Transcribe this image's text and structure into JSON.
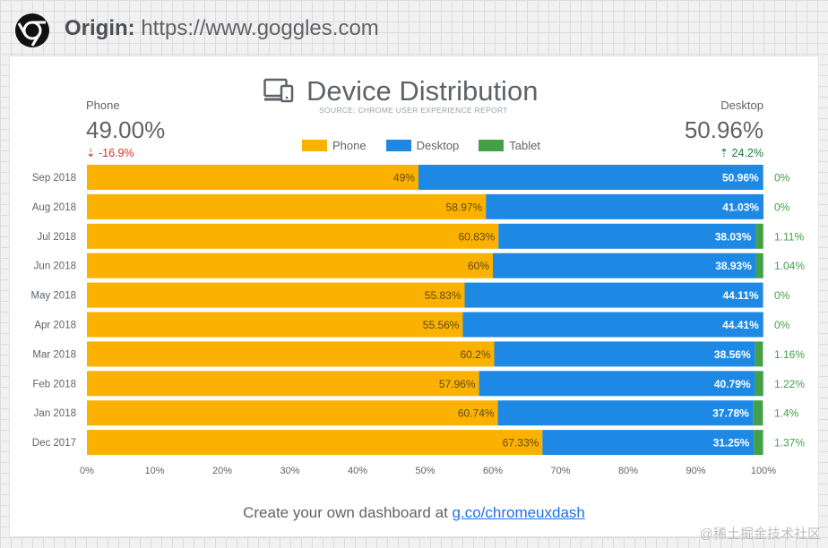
{
  "header": {
    "origin_label": "Origin:",
    "origin_url": "https://www.goggles.com"
  },
  "summary": {
    "left_label": "Phone",
    "left_value": "49.00%",
    "left_delta": "-16.9%",
    "right_label": "Desktop",
    "right_value": "50.96%",
    "right_delta": "24.2%"
  },
  "footer": {
    "text": "Create your own dashboard at ",
    "link": "g.co/chromeuxdash"
  },
  "watermark": "@稀土掘金技术社区",
  "colors": {
    "phone": "#fbb100",
    "desktop": "#1e88e5",
    "tablet": "#43a047",
    "text": "#5f6368"
  },
  "chart_data": {
    "type": "bar",
    "orientation": "horizontal",
    "stacked": true,
    "title": "Device Distribution",
    "subtitle": "SOURCE: CHROME USER EXPERIENCE REPORT",
    "categories": [
      "Sep 2018",
      "Aug 2018",
      "Jul 2018",
      "Jun 2018",
      "May 2018",
      "Apr 2018",
      "Mar 2018",
      "Feb 2018",
      "Jan 2018",
      "Dec 2017"
    ],
    "series": [
      {
        "name": "Phone",
        "values": [
          49,
          58.97,
          60.83,
          60,
          55.83,
          55.56,
          60.2,
          57.96,
          60.74,
          67.33
        ],
        "labels": [
          "49%",
          "58.97%",
          "60.83%",
          "60%",
          "55.83%",
          "55.56%",
          "60.2%",
          "57.96%",
          "60.74%",
          "67.33%"
        ]
      },
      {
        "name": "Desktop",
        "values": [
          50.96,
          41.03,
          38.03,
          38.93,
          44.11,
          44.41,
          38.56,
          40.79,
          37.78,
          31.25
        ],
        "labels": [
          "50.96%",
          "41.03%",
          "38.03%",
          "38.93%",
          "44.11%",
          "44.41%",
          "38.56%",
          "40.79%",
          "37.78%",
          "31.25%"
        ]
      },
      {
        "name": "Tablet",
        "values": [
          0,
          0,
          1.11,
          1.04,
          0,
          0,
          1.16,
          1.22,
          1.4,
          1.37
        ],
        "labels": [
          "0%",
          "0%",
          "1.11%",
          "1.04%",
          "0%",
          "0%",
          "1.16%",
          "1.22%",
          "1.4%",
          "1.37%"
        ]
      }
    ],
    "xlim": [
      0,
      100
    ],
    "xticks": [
      "0%",
      "10%",
      "20%",
      "30%",
      "40%",
      "50%",
      "60%",
      "70%",
      "80%",
      "90%",
      "100%"
    ],
    "legend_position": "top-center",
    "grid": false
  }
}
